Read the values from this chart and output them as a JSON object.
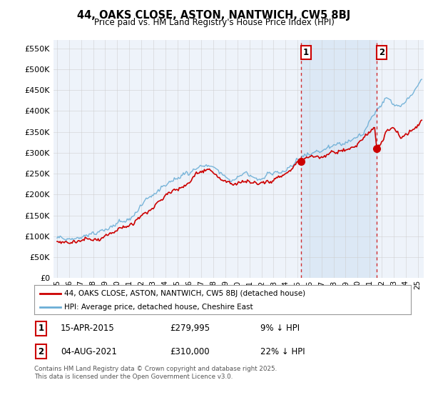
{
  "title": "44, OAKS CLOSE, ASTON, NANTWICH, CW5 8BJ",
  "subtitle": "Price paid vs. HM Land Registry's House Price Index (HPI)",
  "hpi_color": "#6baed6",
  "price_color": "#cc0000",
  "background_color": "#ffffff",
  "plot_bg_color": "#eef3fa",
  "highlight_color": "#dce8f5",
  "grid_color": "#cccccc",
  "ylim": [
    0,
    570000
  ],
  "yticks": [
    0,
    50000,
    100000,
    150000,
    200000,
    250000,
    300000,
    350000,
    400000,
    450000,
    500000,
    550000
  ],
  "sale1_date": "15-APR-2015",
  "sale1_price": 279995,
  "sale1_label": "1",
  "sale1_note": "9% ↓ HPI",
  "sale2_date": "04-AUG-2021",
  "sale2_price": 310000,
  "sale2_label": "2",
  "sale2_note": "22% ↓ HPI",
  "legend_line1": "44, OAKS CLOSE, ASTON, NANTWICH, CW5 8BJ (detached house)",
  "legend_line2": "HPI: Average price, detached house, Cheshire East",
  "footer": "Contains HM Land Registry data © Crown copyright and database right 2025.\nThis data is licensed under the Open Government Licence v3.0.",
  "sale1_x": 2015.29,
  "sale2_x": 2021.59,
  "xmin": 1994.7,
  "xmax": 2025.5
}
